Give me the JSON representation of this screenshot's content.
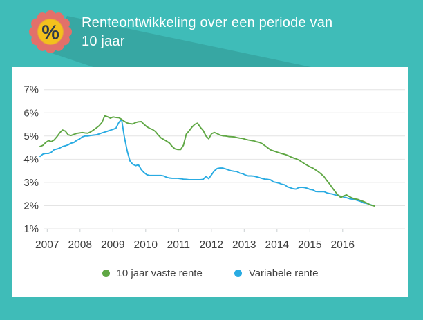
{
  "header": {
    "title_line1": "Renteontwikkeling over een periode van",
    "title_line2": "10 jaar",
    "badge_symbol": "%"
  },
  "colors": {
    "background_teal": "#3fbcb8",
    "shadow_teal": "#37a7a3",
    "badge_salmon": "#e2706a",
    "badge_yellow": "#f3c11d",
    "badge_symbol_color": "#2d3a4b",
    "gridline": "#e4e4e4",
    "tick": "#c9cfd1",
    "axis_text": "#3d3d3d",
    "series_green": "#5fa744",
    "series_blue": "#29abe2"
  },
  "chart_data": {
    "type": "line",
    "title": "Renteontwikkeling over een periode van 10 jaar",
    "x_unit": "monthly samples, Jan 2007 - Dec 2016",
    "x_tick_labels": [
      "2007",
      "2008",
      "2009",
      "2010",
      "2011",
      "2012",
      "2013",
      "2014",
      "2015",
      "2016"
    ],
    "y_tick_labels": [
      "1%",
      "2%",
      "3%",
      "4%",
      "5%",
      "6%",
      "7%"
    ],
    "ylim": [
      1,
      7
    ],
    "grid": true,
    "legend_position": "bottom",
    "series": [
      {
        "name": "10 jaar vaste rente",
        "color": "#5fa744",
        "values": [
          4.55,
          4.6,
          4.72,
          4.8,
          4.76,
          4.83,
          4.97,
          5.14,
          5.26,
          5.21,
          5.05,
          5.02,
          5.07,
          5.11,
          5.13,
          5.15,
          5.13,
          5.12,
          5.18,
          5.26,
          5.35,
          5.44,
          5.58,
          5.87,
          5.83,
          5.77,
          5.82,
          5.8,
          5.79,
          5.72,
          5.63,
          5.56,
          5.53,
          5.52,
          5.58,
          5.61,
          5.62,
          5.5,
          5.4,
          5.33,
          5.28,
          5.2,
          5.05,
          4.92,
          4.85,
          4.78,
          4.7,
          4.55,
          4.45,
          4.42,
          4.42,
          4.6,
          5.08,
          5.22,
          5.38,
          5.5,
          5.55,
          5.38,
          5.24,
          5.0,
          4.88,
          5.1,
          5.15,
          5.1,
          5.04,
          5.01,
          5.0,
          4.98,
          4.97,
          4.96,
          4.93,
          4.91,
          4.9,
          4.86,
          4.83,
          4.81,
          4.79,
          4.75,
          4.73,
          4.67,
          4.58,
          4.49,
          4.4,
          4.36,
          4.32,
          4.28,
          4.24,
          4.21,
          4.17,
          4.11,
          4.06,
          4.02,
          3.97,
          3.89,
          3.81,
          3.74,
          3.67,
          3.62,
          3.54,
          3.46,
          3.36,
          3.25,
          3.08,
          2.93,
          2.76,
          2.6,
          2.45,
          2.35,
          2.42,
          2.46,
          2.39,
          2.33,
          2.29,
          2.27,
          2.22,
          2.18,
          2.12,
          2.06,
          2.01,
          1.98
        ]
      },
      {
        "name": "Variabele rente",
        "color": "#29abe2",
        "values": [
          4.12,
          4.22,
          4.25,
          4.25,
          4.3,
          4.41,
          4.44,
          4.48,
          4.55,
          4.58,
          4.62,
          4.69,
          4.72,
          4.81,
          4.87,
          4.96,
          5.0,
          5.0,
          5.02,
          5.04,
          5.05,
          5.09,
          5.13,
          5.17,
          5.21,
          5.25,
          5.29,
          5.34,
          5.58,
          5.72,
          4.95,
          4.35,
          3.92,
          3.78,
          3.72,
          3.76,
          3.55,
          3.42,
          3.33,
          3.3,
          3.3,
          3.3,
          3.3,
          3.3,
          3.28,
          3.22,
          3.19,
          3.18,
          3.18,
          3.18,
          3.16,
          3.14,
          3.13,
          3.12,
          3.12,
          3.12,
          3.12,
          3.12,
          3.13,
          3.26,
          3.16,
          3.33,
          3.5,
          3.6,
          3.62,
          3.62,
          3.58,
          3.54,
          3.5,
          3.48,
          3.47,
          3.4,
          3.38,
          3.32,
          3.28,
          3.28,
          3.27,
          3.24,
          3.21,
          3.17,
          3.14,
          3.13,
          3.11,
          3.02,
          3.0,
          2.97,
          2.92,
          2.9,
          2.81,
          2.77,
          2.73,
          2.71,
          2.78,
          2.79,
          2.78,
          2.75,
          2.7,
          2.68,
          2.61,
          2.6,
          2.6,
          2.6,
          2.55,
          2.52,
          2.5,
          2.46,
          2.44,
          2.4,
          2.37,
          2.34,
          2.3,
          2.28,
          2.26,
          2.22,
          2.18,
          2.12,
          2.1,
          2.06,
          2.02,
          2.0
        ]
      }
    ]
  }
}
